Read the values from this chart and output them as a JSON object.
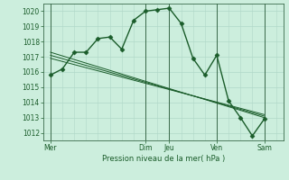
{
  "bg_color": "#cceedd",
  "grid_color_minor": "#b0d8c8",
  "grid_color_major": "#88bbaa",
  "line_color": "#1a5c2a",
  "marker_color": "#1a5c2a",
  "spine_color": "#3a6a4a",
  "x_ticks_labels": [
    "Mer",
    "Dim",
    "Jeu",
    "Ven",
    "Sam"
  ],
  "x_ticks_pos": [
    0,
    4,
    5,
    7,
    9
  ],
  "xlim": [
    -0.3,
    9.8
  ],
  "ylim": [
    1011.5,
    1020.5
  ],
  "yticks": [
    1012,
    1013,
    1014,
    1015,
    1016,
    1017,
    1018,
    1019,
    1020
  ],
  "xlabel": "Pression niveau de la mer( hPa )",
  "series": [
    {
      "x": [
        0,
        0.5,
        1,
        1.5,
        2,
        2.5,
        3,
        3.5,
        4,
        4.5,
        5,
        5.5,
        6,
        6.5,
        7,
        7.5,
        8,
        8.5,
        9
      ],
      "y": [
        1015.8,
        1016.2,
        1017.3,
        1017.3,
        1018.2,
        1018.3,
        1017.5,
        1019.4,
        1020.0,
        1020.1,
        1020.2,
        1019.2,
        1016.9,
        1015.8,
        1017.1,
        1014.1,
        1013.0,
        1011.8,
        1012.9
      ],
      "marker": "D",
      "markersize": 2.5,
      "lw": 1.0
    },
    {
      "x": [
        0,
        9
      ],
      "y": [
        1017.3,
        1013.0
      ],
      "marker": null,
      "markersize": 0,
      "lw": 0.7
    },
    {
      "x": [
        0,
        9
      ],
      "y": [
        1017.1,
        1013.1
      ],
      "marker": null,
      "markersize": 0,
      "lw": 0.7
    },
    {
      "x": [
        0,
        9
      ],
      "y": [
        1016.9,
        1013.2
      ],
      "marker": null,
      "markersize": 0,
      "lw": 0.7
    }
  ],
  "vlines_x": [
    0,
    4,
    5,
    7,
    9
  ],
  "vlines_color": "#3a6a4a"
}
